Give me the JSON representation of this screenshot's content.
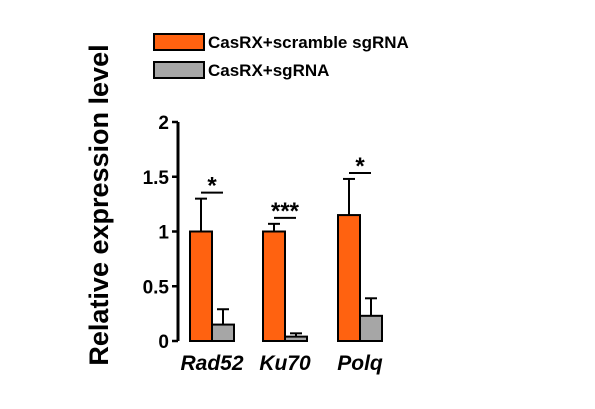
{
  "chart_data": {
    "type": "bar",
    "ylabel": "Relative expression level",
    "xlabel": "",
    "ylim": [
      0,
      2
    ],
    "yticks": [
      {
        "value": 0,
        "label": "0"
      },
      {
        "value": 0.5,
        "label": "0.5"
      },
      {
        "value": 1,
        "label": "1"
      },
      {
        "value": 1.5,
        "label": "1.5"
      },
      {
        "value": 2,
        "label": "2"
      }
    ],
    "categories": [
      "Rad52",
      "Ku70",
      "Polq"
    ],
    "series": [
      {
        "name": "CasRX+scramble sgRNA",
        "color": "#ff6210",
        "values": [
          1.0,
          1.0,
          1.15
        ],
        "errors": [
          0.3,
          0.07,
          0.33
        ]
      },
      {
        "name": "CasRX+sgRNA",
        "color": "#a6a6a6",
        "values": [
          0.15,
          0.04,
          0.23
        ],
        "errors": [
          0.14,
          0.03,
          0.16
        ]
      }
    ],
    "significance": [
      "*",
      "***",
      "*"
    ],
    "legend_position": "top",
    "grid": false
  }
}
